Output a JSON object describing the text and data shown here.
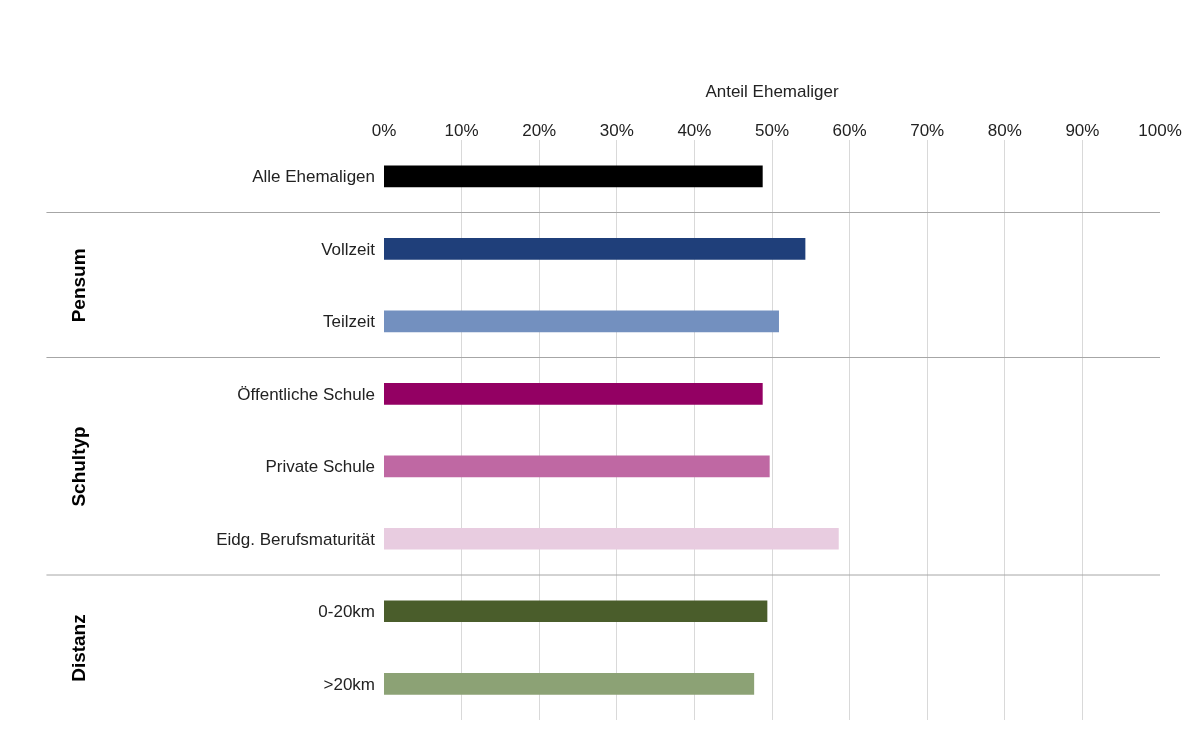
{
  "chart_data": {
    "type": "bar",
    "orientation": "horizontal",
    "xlabel": "Anteil Ehemaliger",
    "categories": [
      "Alle Ehemaligen",
      "Vollzeit",
      "Teilzeit",
      "Öffentliche Schule",
      "Private Schule",
      "Eidg. Berufsmaturität",
      "0-20km",
      ">20km"
    ],
    "values": [
      48.8,
      54.3,
      50.9,
      48.8,
      49.7,
      58.6,
      49.4,
      47.7
    ],
    "colors": [
      "#000000",
      "#1f3f7a",
      "#7390bf",
      "#930063",
      "#bf68a3",
      "#e8cce0",
      "#4a5d2b",
      "#8ca275"
    ],
    "xlim": [
      0,
      100
    ],
    "xticks": [
      {
        "value": 0,
        "label": "0%"
      },
      {
        "value": 10,
        "label": "10%"
      },
      {
        "value": 20,
        "label": "20%"
      },
      {
        "value": 30,
        "label": "30%"
      },
      {
        "value": 40,
        "label": "40%"
      },
      {
        "value": 50,
        "label": "50%"
      },
      {
        "value": 60,
        "label": "60%"
      },
      {
        "value": 70,
        "label": "70%"
      },
      {
        "value": 80,
        "label": "80%"
      },
      {
        "value": 90,
        "label": "90%"
      },
      {
        "value": 100,
        "label": "100%"
      }
    ],
    "grid": "x",
    "annotations": [
      "Pensum",
      "Schultyp",
      "Distanz"
    ]
  }
}
